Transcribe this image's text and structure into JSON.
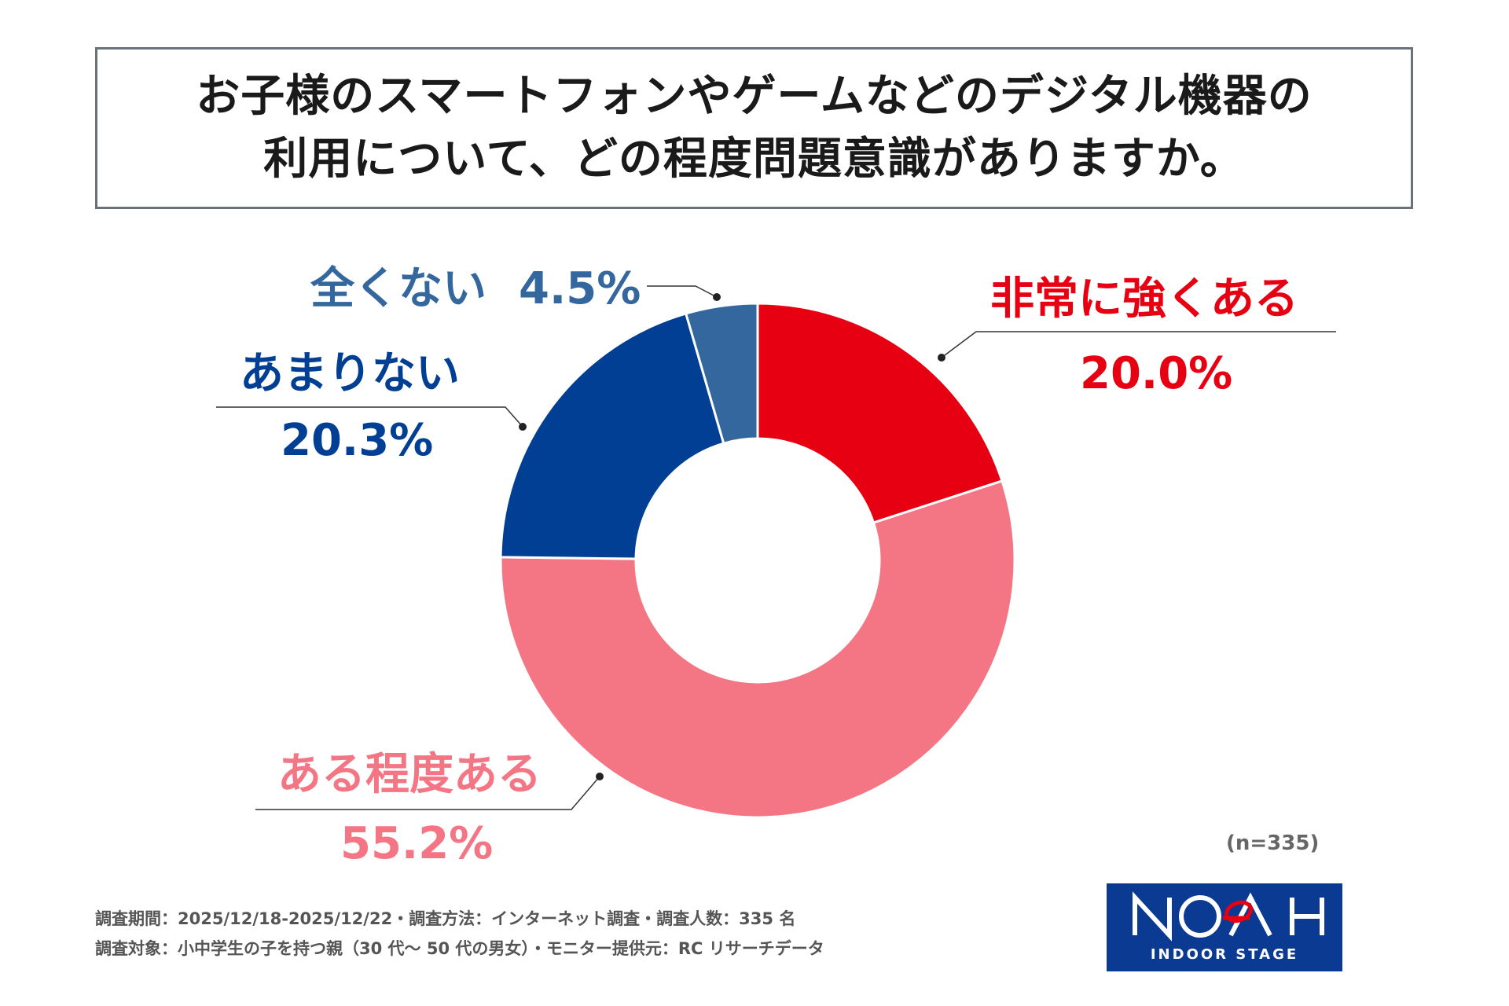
{
  "title": {
    "line1": "お子様のスマートフォンやゲームなどのデジタル機器の",
    "line2": "利用について、どの程度問題意識がありますか。"
  },
  "chart_data": {
    "type": "pie",
    "variant": "donut",
    "title": "お子様のスマートフォンやゲームなどのデジタル機器の利用について、どの程度問題意識がありますか。",
    "categories": [
      "非常に強くある",
      "ある程度ある",
      "あまりない",
      "全くない"
    ],
    "values": [
      20.0,
      55.2,
      20.3,
      4.5
    ],
    "value_labels": [
      "20.0%",
      "55.2%",
      "20.3%",
      "4.5%"
    ],
    "colors": [
      "#e60012",
      "#f47685",
      "#003f93",
      "#33679e"
    ],
    "start": "top, clockwise",
    "sample_size": "(n=335)"
  },
  "footer": {
    "line1": "調査期間：2025/12/18-2025/12/22・調査方法：インターネット調査・調査人数：335 名",
    "line2": "調査対象：小中学生の子を持つ親（30 代～ 50 代の男女）・モニター提供元：RC リサーチデータ"
  },
  "logo": {
    "name": "NOAH",
    "subtitle": "INDOOR STAGE",
    "background": "#0a3a92"
  }
}
